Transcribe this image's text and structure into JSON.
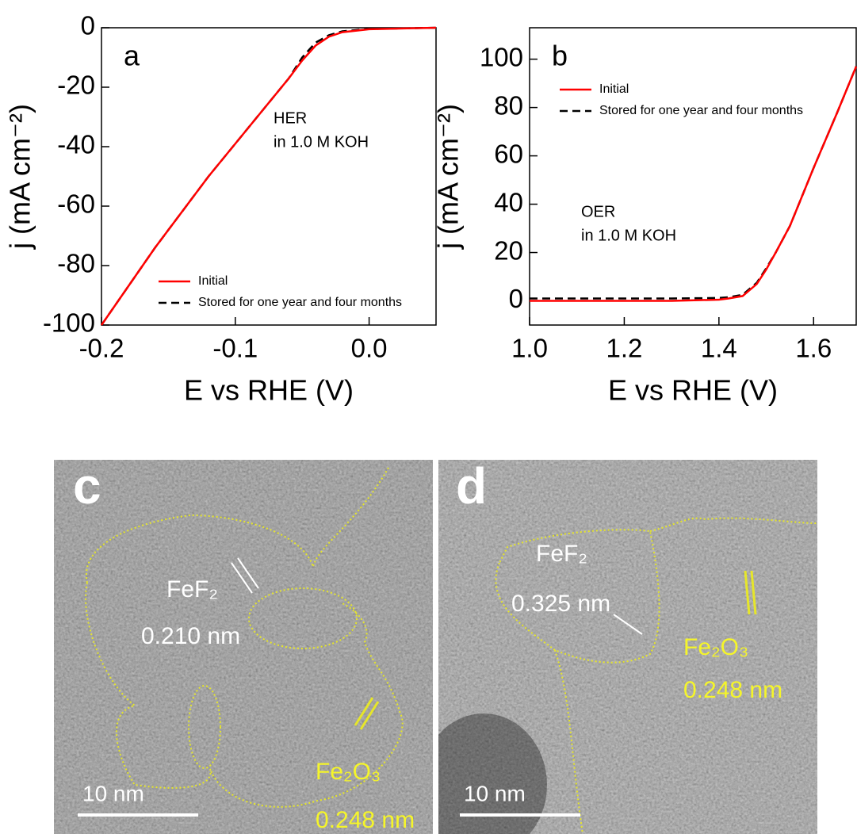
{
  "chart_data": [
    {
      "type": "line",
      "panel_label": "a",
      "xlabel": "E vs RHE (V)",
      "ylabel": "j (mA cm⁻²)",
      "annotation": [
        "HER",
        "in 1.0 M KOH"
      ],
      "legend": "lower right",
      "xlim": [
        -0.2,
        0.05
      ],
      "xticks": [
        -0.2,
        -0.1,
        {
          "value": 0,
          "label": "0.0"
        }
      ],
      "ylim": [
        -100,
        0
      ],
      "yticks": [
        -100,
        -80,
        -60,
        -40,
        -20,
        0
      ],
      "x": [
        -0.2,
        -0.18,
        -0.16,
        -0.14,
        -0.12,
        -0.1,
        -0.08,
        -0.06,
        -0.05,
        -0.04,
        -0.03,
        -0.02,
        0,
        0.05
      ],
      "series": [
        {
          "name": "Initial",
          "color": "#ff0000",
          "line_style": "solid",
          "values": [
            -100,
            -87,
            -74,
            -62,
            -50,
            -39,
            -28,
            -17,
            -11,
            -6,
            -3,
            -1.5,
            -0.5,
            0
          ]
        },
        {
          "name": "Stored for one year and four months",
          "color": "#000000",
          "line_style": "dashed",
          "values": [
            -100,
            -87,
            -74,
            -62,
            -50,
            -39,
            -28,
            -17,
            -10,
            -5,
            -2.5,
            -1.2,
            -0.4,
            0
          ]
        }
      ]
    },
    {
      "type": "line",
      "panel_label": "b",
      "xlabel": "E vs RHE (V)",
      "ylabel": "j (mA cm⁻²)",
      "annotation": [
        "OER",
        "in 1.0 M KOH"
      ],
      "legend": "upper right",
      "xlim": [
        1.0,
        1.69
      ],
      "xticks": [
        {
          "value": 1.0,
          "label": "1.0"
        },
        1.2,
        1.4,
        1.6
      ],
      "ylim": [
        -10,
        113
      ],
      "yticks": [
        0,
        20,
        40,
        60,
        80,
        100
      ],
      "x": [
        1.0,
        1.1,
        1.2,
        1.3,
        1.4,
        1.42,
        1.45,
        1.48,
        1.5,
        1.52,
        1.55,
        1.6,
        1.65,
        1.69
      ],
      "series": [
        {
          "name": "Initial",
          "color": "#ff0000",
          "line_style": "solid",
          "values": [
            0,
            0,
            0,
            0,
            0.5,
            1,
            2,
            7,
            13,
            20,
            31,
            55,
            78,
            97
          ]
        },
        {
          "name": "Stored for one year and four months",
          "color": "#000000",
          "line_style": "dashed",
          "values": [
            1,
            1,
            1,
            1,
            1.2,
            1.5,
            2.5,
            7.5,
            13.5,
            20,
            31,
            55,
            78,
            97
          ]
        }
      ]
    }
  ],
  "images": [
    {
      "panel_label": "c",
      "labels": [
        "FeF₂",
        "0.210 nm",
        "Fe₂O₃",
        "0.248 nm"
      ],
      "scale_bar": "10 nm"
    },
    {
      "panel_label": "d",
      "labels": [
        "FeF₂",
        "0.325 nm",
        "Fe₂O₃",
        "0.248 nm"
      ],
      "scale_bar": "10 nm"
    }
  ]
}
